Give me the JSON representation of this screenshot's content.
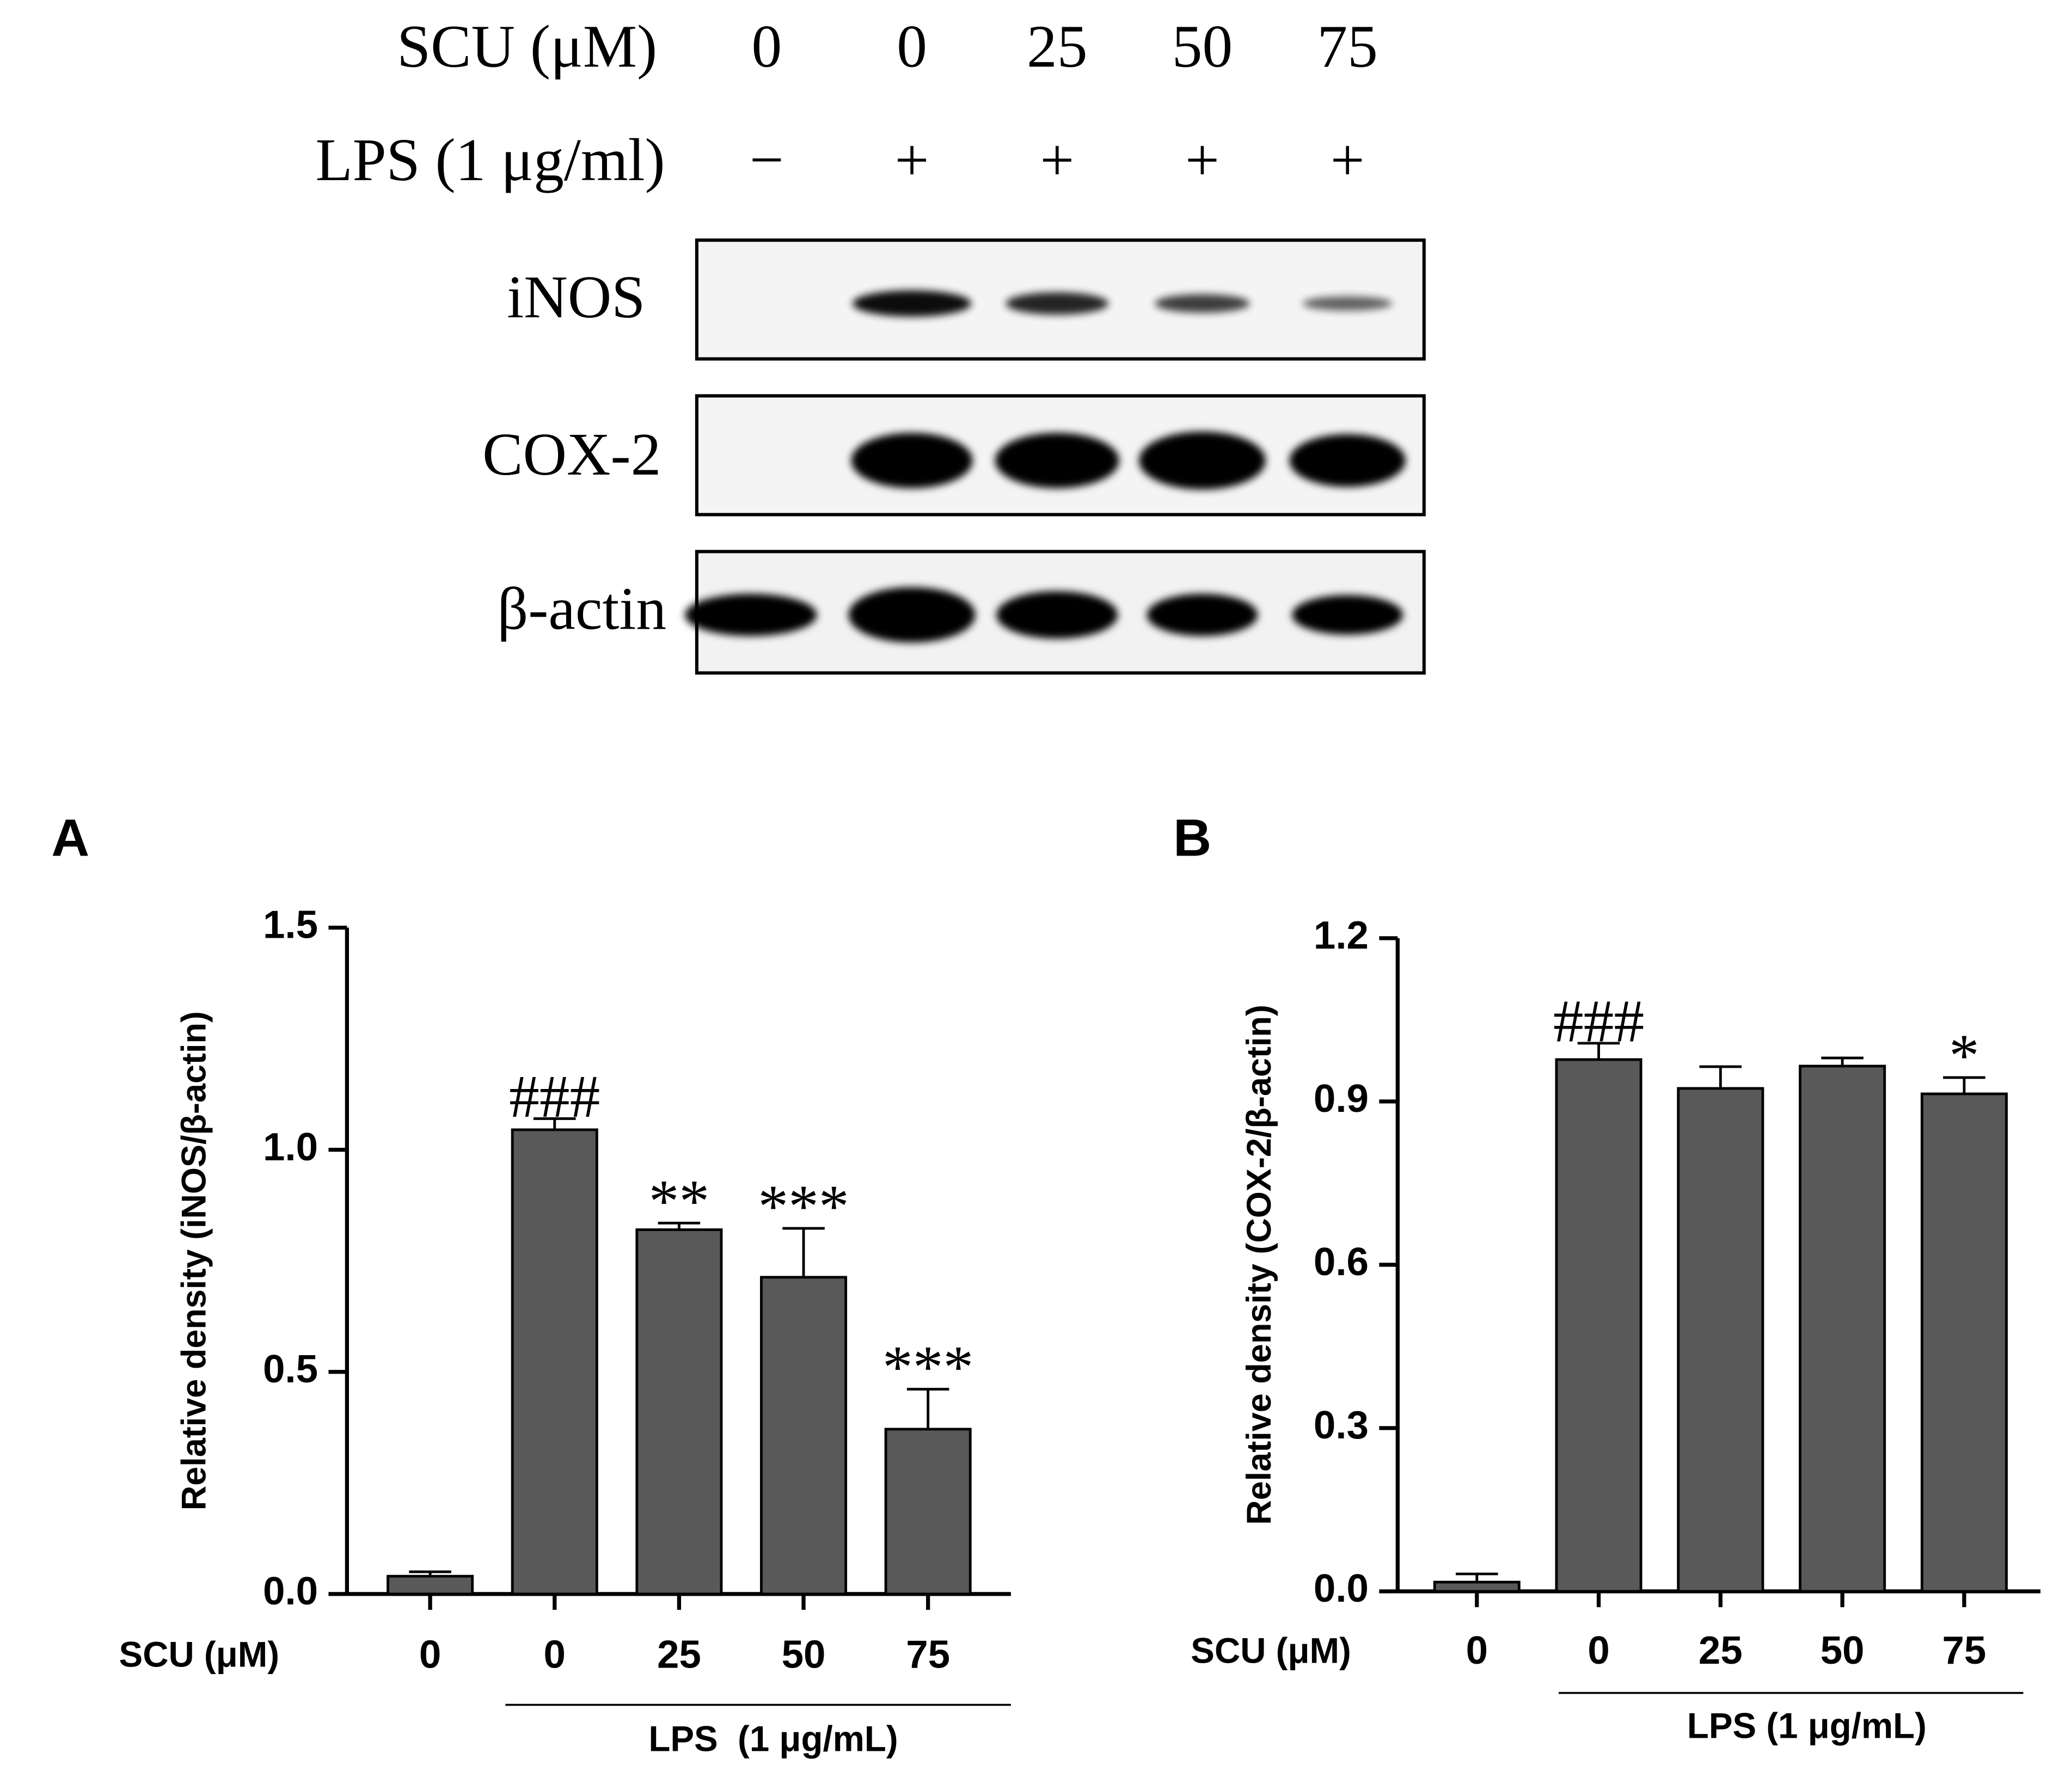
{
  "blot": {
    "rows": [
      {
        "label": "SCU (μM)",
        "lanes": [
          "0",
          "0",
          "25",
          "50",
          "75"
        ]
      },
      {
        "label": "LPS (1 μg/ml)",
        "lanes": [
          "−",
          "+",
          "+",
          "+",
          "+"
        ]
      }
    ],
    "bands": [
      "iNOS",
      "COX-2",
      "β-actin"
    ]
  },
  "chart_data": [
    {
      "type": "bar",
      "title": "A",
      "y_label": "Relative density (iNOS/β-actin)",
      "x_label": "SCU (μM)",
      "group_label": "LPS  (1 μg/mL)",
      "categories": [
        "0",
        "0",
        "25",
        "50",
        "75"
      ],
      "values": [
        0.04,
        1.045,
        0.82,
        0.713,
        0.371
      ],
      "errors": [
        0.01,
        0.025,
        0.015,
        0.11,
        0.09
      ],
      "annotations": [
        null,
        "###",
        "**",
        "***",
        "***"
      ],
      "color": "#595959",
      "ylim": [
        0,
        1.5
      ],
      "yticks": [
        {
          "value": 0,
          "label": "0.0"
        },
        0.5,
        {
          "value": 1,
          "label": "1.0"
        },
        1.5
      ]
    },
    {
      "type": "bar",
      "title": "B",
      "y_label": "Relative density (COX-2/β-actin)",
      "x_label": "SCU (μM)",
      "group_label": "LPS (1 μg/mL)",
      "categories": [
        "0",
        "0",
        "25",
        "50",
        "75"
      ],
      "values": [
        0.017,
        0.977,
        0.924,
        0.965,
        0.914
      ],
      "errors": [
        0.015,
        0.03,
        0.04,
        0.015,
        0.03
      ],
      "annotations": [
        null,
        "###",
        null,
        null,
        "*"
      ],
      "color": "#595959",
      "ylim": [
        0,
        1.2
      ],
      "yticks": [
        {
          "value": 0,
          "label": "0.0"
        },
        0.3,
        0.6,
        0.9,
        1.2
      ]
    }
  ]
}
